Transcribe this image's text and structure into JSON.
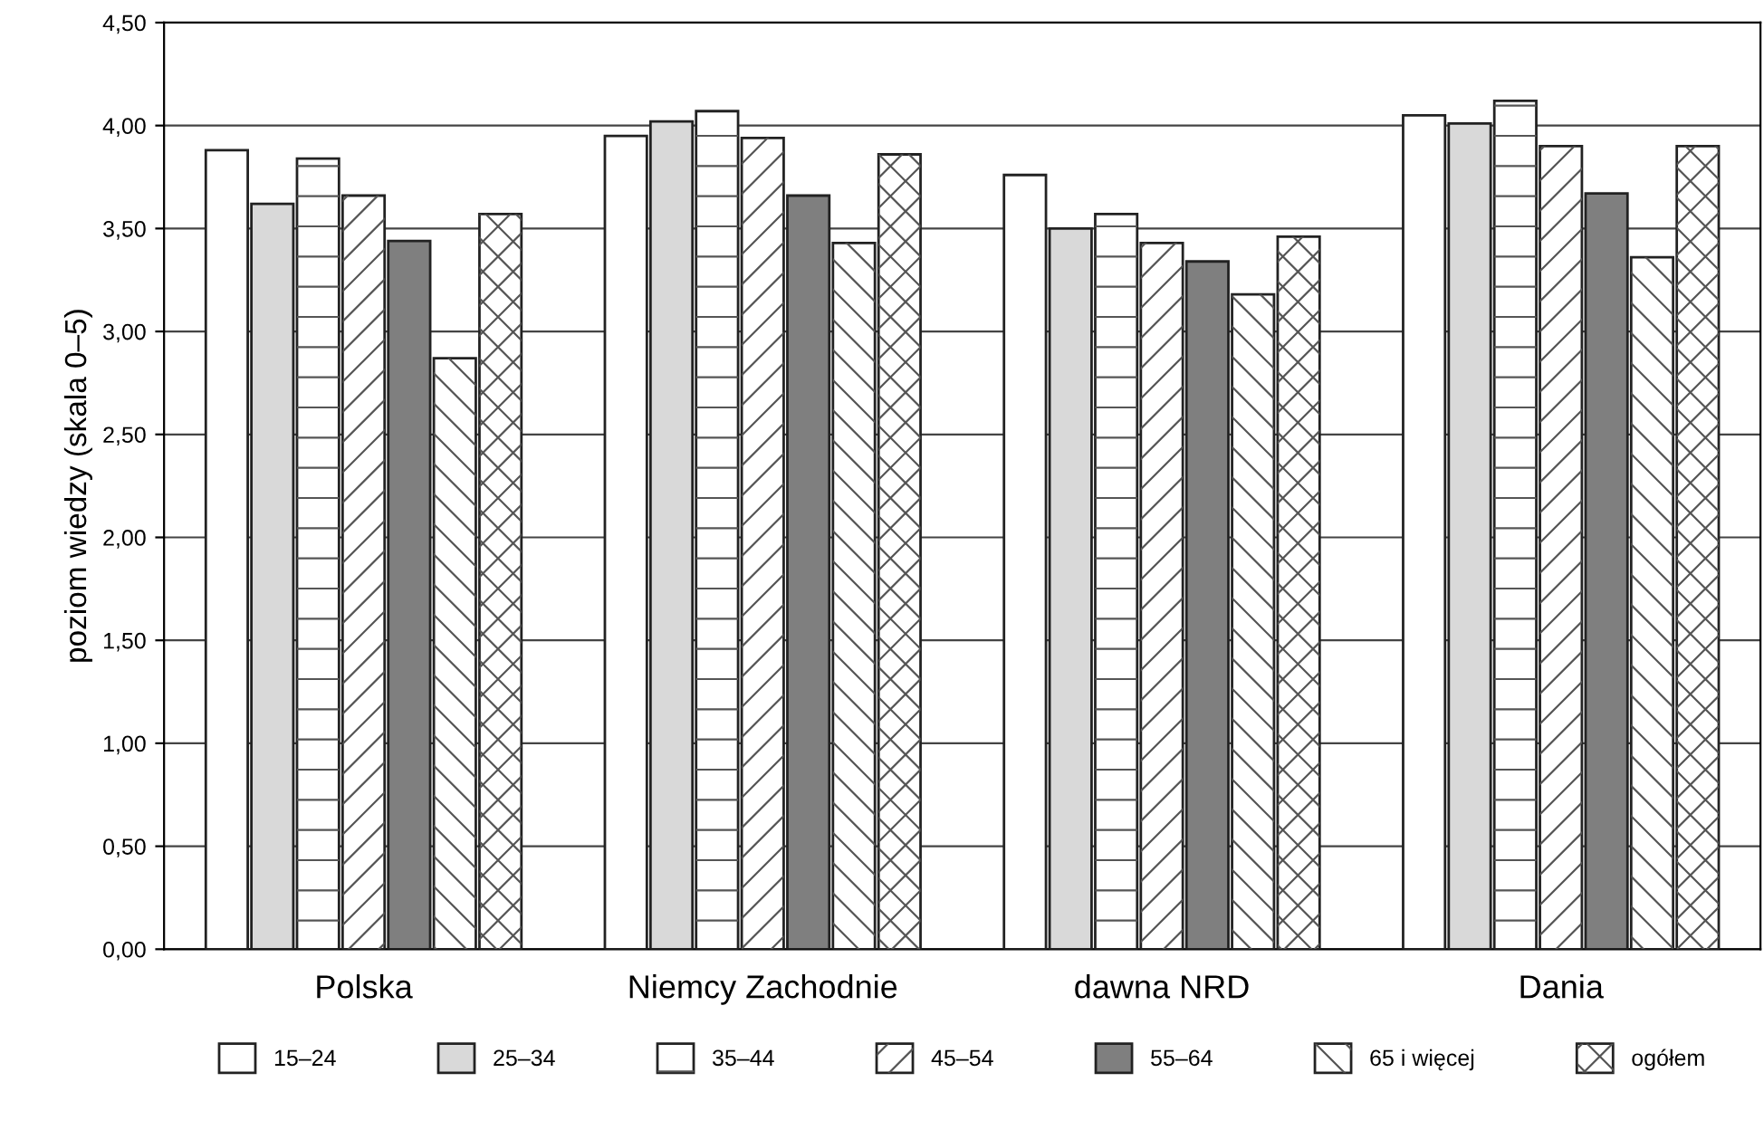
{
  "chart_data": {
    "type": "bar",
    "ylabel": "poziom wiedzy (skala 0–5)",
    "categories": [
      "Polska",
      "Niemcy Zachodnie",
      "dawna NRD",
      "Dania"
    ],
    "series": [
      {
        "name": "15–24",
        "color": "#ffffff",
        "values": [
          3.88,
          3.95,
          3.76,
          4.05
        ]
      },
      {
        "name": "25–34",
        "color": "#d9d9d9",
        "values": [
          3.62,
          4.02,
          3.5,
          4.01
        ]
      },
      {
        "name": "35–44",
        "color": "#ffffff",
        "values": [
          3.84,
          4.07,
          3.57,
          4.12
        ]
      },
      {
        "name": "45–54",
        "color": "#ffffff",
        "values": [
          3.66,
          3.94,
          3.43,
          3.9
        ]
      },
      {
        "name": "55–64",
        "color": "#7f7f7f",
        "values": [
          3.44,
          3.66,
          3.34,
          3.67
        ]
      },
      {
        "name": "65 i więcej",
        "color": "#ffffff",
        "values": [
          2.87,
          3.43,
          3.18,
          3.36
        ]
      },
      {
        "name": "ogółem",
        "color": "#ffffff",
        "values": [
          3.57,
          3.86,
          3.46,
          3.9
        ]
      }
    ],
    "ylim": [
      0,
      4.5
    ],
    "yticks": [
      {
        "value": 0,
        "label": "0,00"
      },
      {
        "value": 0.5,
        "label": "0,50"
      },
      {
        "value": 1,
        "label": "1,00"
      },
      {
        "value": 1.5,
        "label": "1,50"
      },
      {
        "value": 2,
        "label": "2,00"
      },
      {
        "value": 2.5,
        "label": "2,50"
      },
      {
        "value": 3,
        "label": "3,00"
      },
      {
        "value": 3.5,
        "label": "3,50"
      },
      {
        "value": 4,
        "label": "4,00"
      },
      {
        "value": 4.5,
        "label": "4,50"
      }
    ],
    "grid": "y",
    "legend": "bottom"
  }
}
